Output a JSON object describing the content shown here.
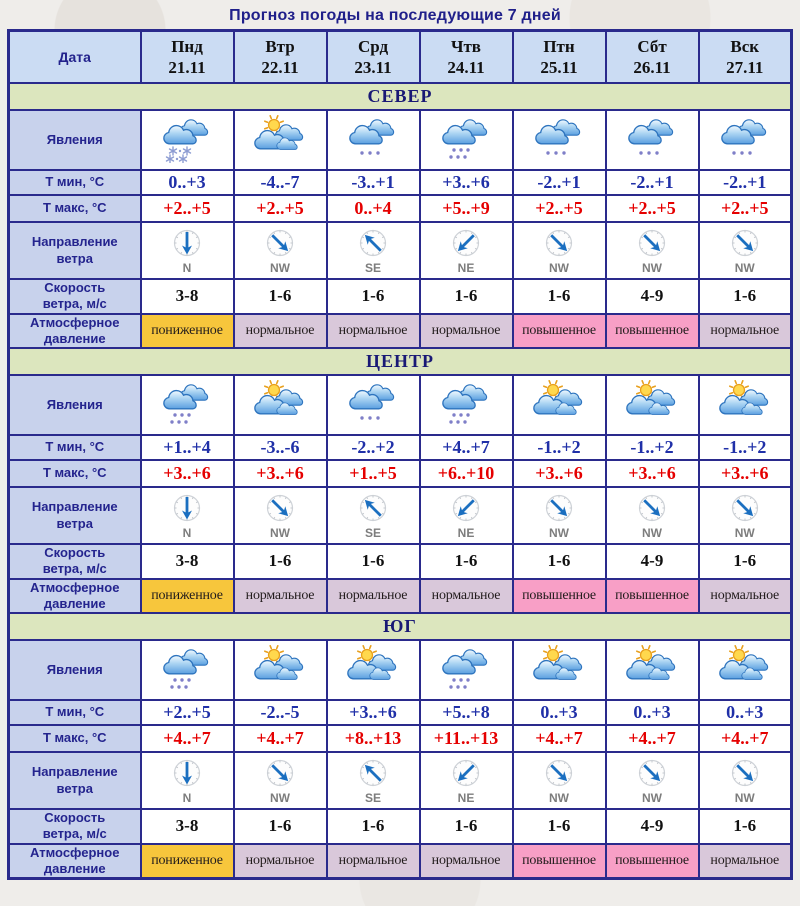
{
  "title": "Прогноз погоды на последующие 7 дней",
  "header": {
    "date_label": "Дата",
    "days": [
      {
        "weekday": "Пнд",
        "date": "21.11"
      },
      {
        "weekday": "Втр",
        "date": "22.11"
      },
      {
        "weekday": "Срд",
        "date": "23.11"
      },
      {
        "weekday": "Чтв",
        "date": "24.11"
      },
      {
        "weekday": "Птн",
        "date": "25.11"
      },
      {
        "weekday": "Сбт",
        "date": "26.11"
      },
      {
        "weekday": "Вск",
        "date": "27.11"
      }
    ]
  },
  "row_labels": {
    "phenomena": [
      "Явления"
    ],
    "tmin": [
      "Т мин, °С"
    ],
    "tmax": [
      "Т макс, °С"
    ],
    "wind_dir": [
      "Направление",
      "ветра"
    ],
    "wind_speed": [
      "Скорость",
      "ветра, м/с"
    ],
    "pressure": [
      "Атмосферное",
      "давление"
    ]
  },
  "sections": [
    {
      "name": "СЕВЕР",
      "phenomena": [
        "snow",
        "sun-clouds",
        "drizzle",
        "rain",
        "drizzle",
        "drizzle",
        "drizzle"
      ],
      "tmin": [
        "0..+3",
        "-4..-7",
        "-3..+1",
        "+3..+6",
        "-2..+1",
        "-2..+1",
        "-2..+1"
      ],
      "tmax": [
        "+2..+5",
        "+2..+5",
        "0..+4",
        "+5..+9",
        "+2..+5",
        "+2..+5",
        "+2..+5"
      ],
      "wind_dir": [
        "N",
        "NW",
        "SE",
        "NE",
        "NW",
        "NW",
        "NW"
      ],
      "wind_speed": [
        "3-8",
        "1-6",
        "1-6",
        "1-6",
        "1-6",
        "4-9",
        "1-6"
      ],
      "pressure": [
        "пониженное",
        "нормальное",
        "нормальное",
        "нормальное",
        "повышенное",
        "повышенное",
        "нормальное"
      ]
    },
    {
      "name": "ЦЕНТР",
      "phenomena": [
        "rain",
        "sun-clouds",
        "drizzle",
        "rain",
        "sun-clouds",
        "sun-clouds",
        "sun-clouds"
      ],
      "tmin": [
        "+1..+4",
        "-3..-6",
        "-2..+2",
        "+4..+7",
        "-1..+2",
        "-1..+2",
        "-1..+2"
      ],
      "tmax": [
        "+3..+6",
        "+3..+6",
        "+1..+5",
        "+6..+10",
        "+3..+6",
        "+3..+6",
        "+3..+6"
      ],
      "wind_dir": [
        "N",
        "NW",
        "SE",
        "NE",
        "NW",
        "NW",
        "NW"
      ],
      "wind_speed": [
        "3-8",
        "1-6",
        "1-6",
        "1-6",
        "1-6",
        "4-9",
        "1-6"
      ],
      "pressure": [
        "пониженное",
        "нормальное",
        "нормальное",
        "нормальное",
        "повышенное",
        "повышенное",
        "нормальное"
      ]
    },
    {
      "name": "ЮГ",
      "phenomena": [
        "rain",
        "sun-clouds",
        "sun-clouds",
        "rain",
        "sun-clouds",
        "sun-clouds",
        "sun-clouds"
      ],
      "tmin": [
        "+2..+5",
        "-2..-5",
        "+3..+6",
        "+5..+8",
        "0..+3",
        "0..+3",
        "0..+3"
      ],
      "tmax": [
        "+4..+7",
        "+4..+7",
        "+8..+13",
        "+11..+13",
        "+4..+7",
        "+4..+7",
        "+4..+7"
      ],
      "wind_dir": [
        "N",
        "NW",
        "SE",
        "NE",
        "NW",
        "NW",
        "NW"
      ],
      "wind_speed": [
        "3-8",
        "1-6",
        "1-6",
        "1-6",
        "1-6",
        "4-9",
        "1-6"
      ],
      "pressure": [
        "пониженное",
        "нормальное",
        "нормальное",
        "нормальное",
        "повышенное",
        "повышенное",
        "нормальное"
      ]
    }
  ],
  "colors": {
    "border": "#2a2a8c",
    "header_bg": "#cbdcf3",
    "label_bg": "#c8d2ec",
    "band_bg": "#dce6be",
    "tmin_text": "#2030a8",
    "tmax_text": "#e50000",
    "title_text": "#1f1f8a",
    "compass_arrow": "#1b6fc0",
    "pressure_colors": {
      "пониженное": "#f7c63c",
      "нормальное": "#d9c8da",
      "повышенное": "#f89fc6"
    }
  }
}
